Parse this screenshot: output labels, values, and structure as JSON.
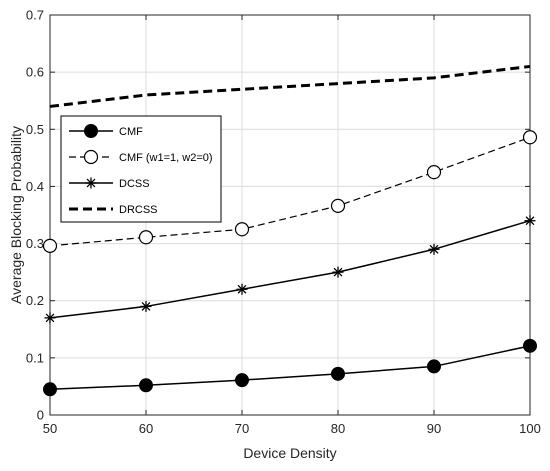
{
  "chart_data": {
    "type": "line",
    "title": "",
    "xlabel": "Device Density",
    "ylabel": "Average Blocking Probability",
    "x": [
      50,
      60,
      70,
      80,
      90,
      100
    ],
    "xlim": [
      50,
      100
    ],
    "ylim": [
      0,
      0.7
    ],
    "xticks": [
      "50",
      "60",
      "70",
      "80",
      "90",
      "100"
    ],
    "yticks": [
      "0",
      "0.1",
      "0.2",
      "0.3",
      "0.4",
      "0.5",
      "0.6",
      "0.7"
    ],
    "grid": true,
    "legend_position": "left, middle",
    "series": [
      {
        "name": "CMF",
        "values": [
          0.045,
          0.052,
          0.061,
          0.072,
          0.085,
          0.121
        ],
        "marker": "filled-circle",
        "line": "solid"
      },
      {
        "name": "CMF (w1=1, w2=0)",
        "values": [
          0.296,
          0.311,
          0.325,
          0.366,
          0.425,
          0.486
        ],
        "marker": "open-circle",
        "line": "dashed"
      },
      {
        "name": "DCSS",
        "values": [
          0.17,
          0.19,
          0.22,
          0.25,
          0.29,
          0.34
        ],
        "marker": "asterisk",
        "line": "solid"
      },
      {
        "name": "DRCSS",
        "values": [
          0.54,
          0.56,
          0.57,
          0.58,
          0.59,
          0.61
        ],
        "marker": "none",
        "line": "bold-dashed"
      }
    ]
  }
}
